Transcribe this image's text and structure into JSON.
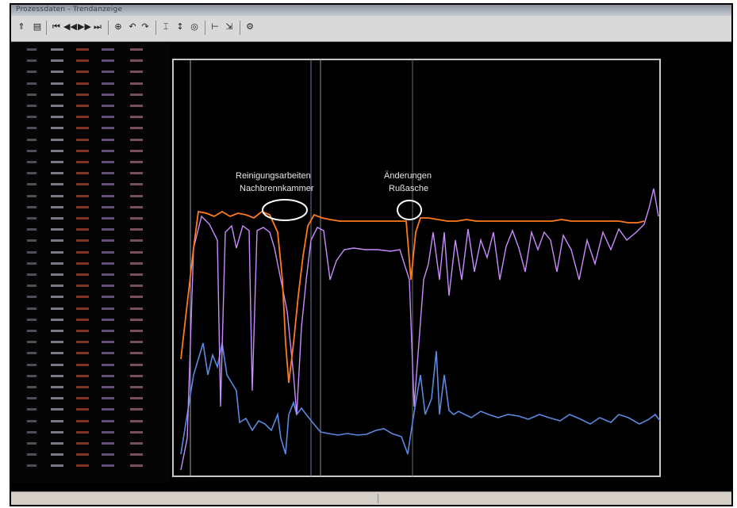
{
  "window": {
    "title": "Prozessdaten - Trendanzeige"
  },
  "toolbar": {
    "icons": [
      "pointer-icon",
      "print-icon",
      "skip-back-icon",
      "rewind-icon",
      "fast-forward-icon",
      "skip-forward-icon",
      "zoom-in-icon",
      "undo-icon",
      "redo-icon",
      "cursor-icon",
      "scale-icon",
      "zoom-icon",
      "axis-icon",
      "export-icon",
      "settings-icon"
    ]
  },
  "annotations": {
    "note1_line1": "Reinigungsarbeiten",
    "note1_line2": "Nachbrennkammer",
    "note2_line1": "Änderungen",
    "note2_line2": "Rußasche"
  },
  "x_axis": {
    "tick_labels": [
      "",
      "",
      "",
      "",
      "",
      "",
      ""
    ]
  },
  "status": {
    "text": ""
  },
  "colors": {
    "orange": "#ff7a1a",
    "purple": "#c98cff",
    "blue": "#5a8ae0",
    "frame": "#c8c8c8"
  }
}
